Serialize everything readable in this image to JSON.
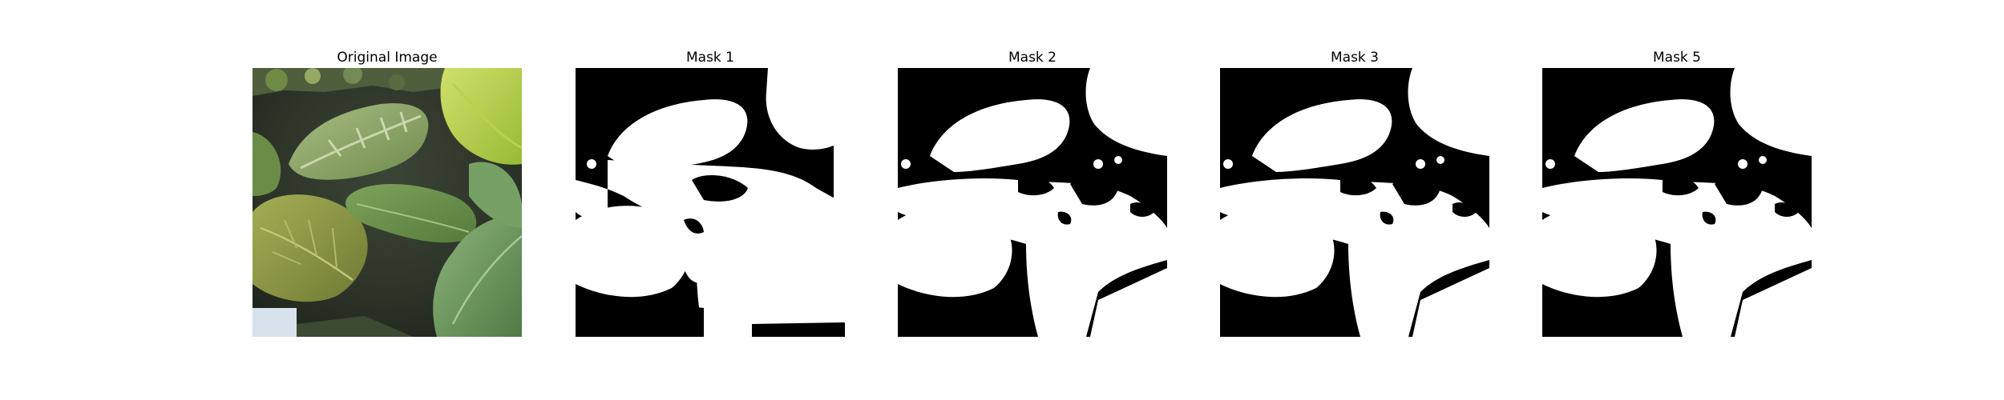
{
  "panels": [
    {
      "title": "Original Image",
      "kind": "photo"
    },
    {
      "title": "Mask 1",
      "kind": "mask"
    },
    {
      "title": "Mask 2",
      "kind": "mask"
    },
    {
      "title": "Mask 3",
      "kind": "mask"
    },
    {
      "title": "Mask 5",
      "kind": "mask"
    }
  ],
  "colors": {
    "background": "#ffffff",
    "mask_background": "#000000",
    "mask_foreground": "#ffffff",
    "leaf_light": "#b7d24a",
    "leaf_mid": "#8fae4e",
    "leaf_dark": "#5f7f3a",
    "foliage_shadow": "#2f3a2c"
  }
}
